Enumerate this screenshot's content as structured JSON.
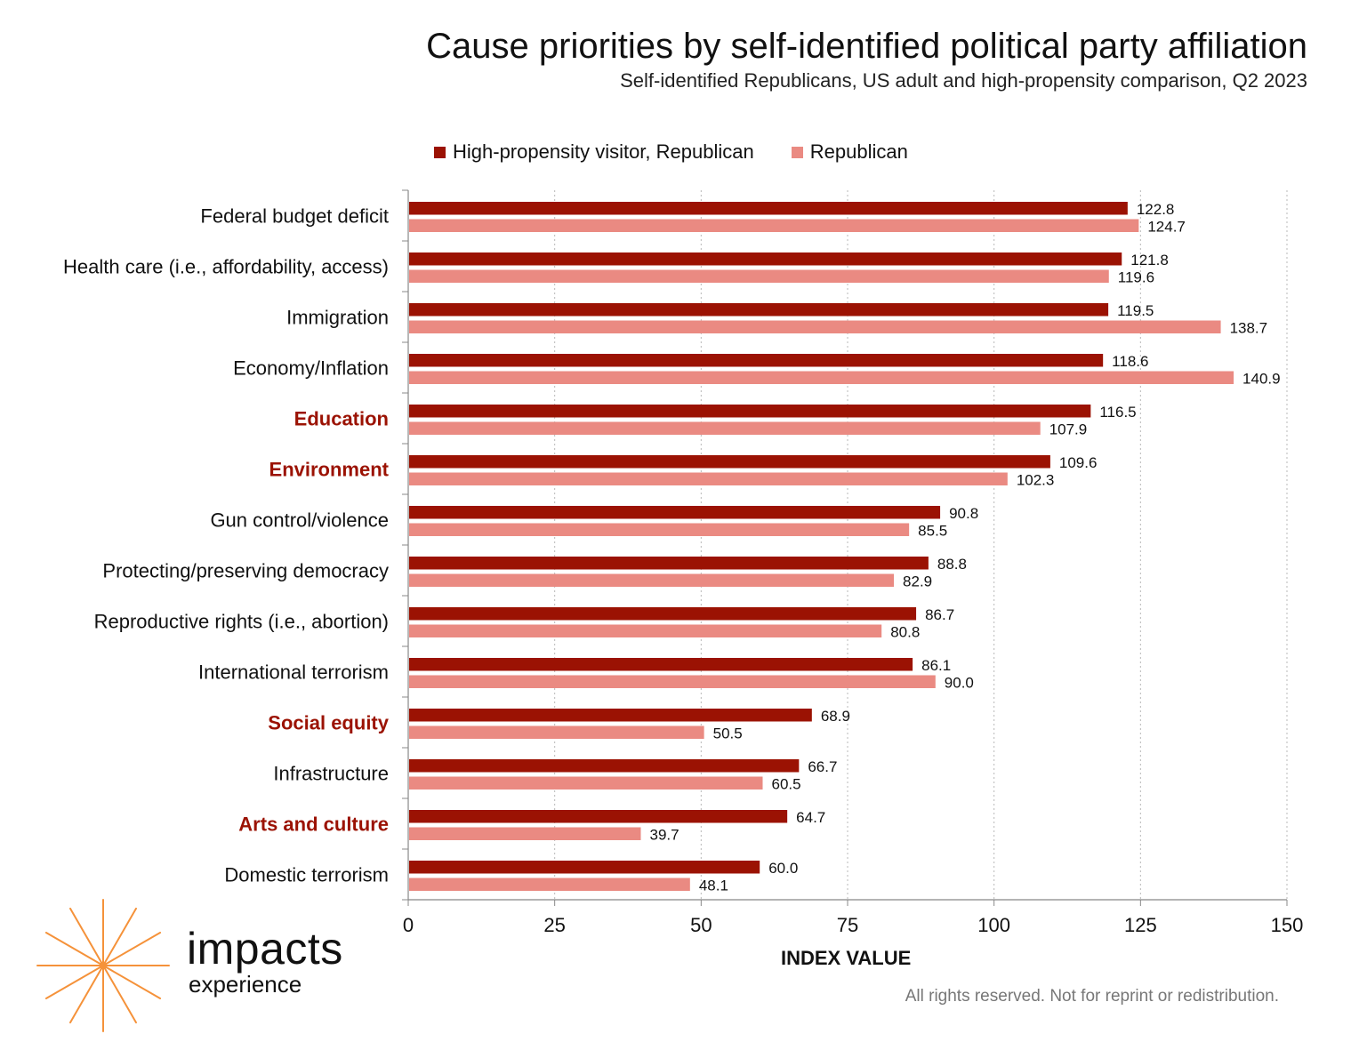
{
  "colors": {
    "series1": "#9b1203",
    "series2": "#ea8a82",
    "highlight": "#9b1203",
    "logo": "#f5923a",
    "grid": "#b8b8b8"
  },
  "chart_data": {
    "type": "bar",
    "orientation": "horizontal",
    "title": "Cause priorities by self-identified political party affiliation",
    "subtitle": "Self-identified Republicans, US adult and high-propensity comparison, Q2 2023",
    "xlabel": "INDEX VALUE",
    "ylabel": "",
    "xlim": [
      0,
      150
    ],
    "xticks": [
      0,
      25,
      50,
      75,
      100,
      125,
      150
    ],
    "grid": "vertical dotted",
    "legend_position": "top",
    "categories": [
      "Federal budget deficit",
      "Health care (i.e., affordability, access)",
      "Immigration",
      "Economy/Inflation",
      "Education",
      "Environment",
      "Gun control/violence",
      "Protecting/preserving democracy",
      "Reproductive rights (i.e., abortion)",
      "International terrorism",
      "Social equity",
      "Infrastructure",
      "Arts and culture",
      "Domestic terrorism"
    ],
    "highlighted_categories": [
      "Education",
      "Environment",
      "Social equity",
      "Arts and culture"
    ],
    "series": [
      {
        "name": "High-propensity visitor, Republican",
        "values": [
          122.8,
          121.8,
          119.5,
          118.6,
          116.5,
          109.6,
          90.8,
          88.8,
          86.7,
          86.1,
          68.9,
          66.7,
          64.7,
          60.0
        ],
        "labels": [
          "122.8",
          "121.8",
          "119.5",
          "118.6",
          "116.5",
          "109.6",
          "90.8",
          "88.8",
          "86.7",
          "86.1",
          "68.9",
          "66.7",
          "64.7",
          "60.0"
        ]
      },
      {
        "name": "Republican",
        "values": [
          124.7,
          119.6,
          138.7,
          140.9,
          107.9,
          102.3,
          85.5,
          82.9,
          80.8,
          90.0,
          50.5,
          60.5,
          39.7,
          48.1
        ],
        "labels": [
          "124.7",
          "119.6",
          "138.7",
          "140.9",
          "107.9",
          "102.3",
          "85.5",
          "82.9",
          "80.8",
          "90.0",
          "50.5",
          "60.5",
          "39.7",
          "48.1"
        ]
      }
    ]
  },
  "logo": {
    "word": "impacts",
    "sub": "experience",
    "icon": "starburst-icon"
  },
  "footer": "All rights reserved. Not for reprint or redistribution."
}
